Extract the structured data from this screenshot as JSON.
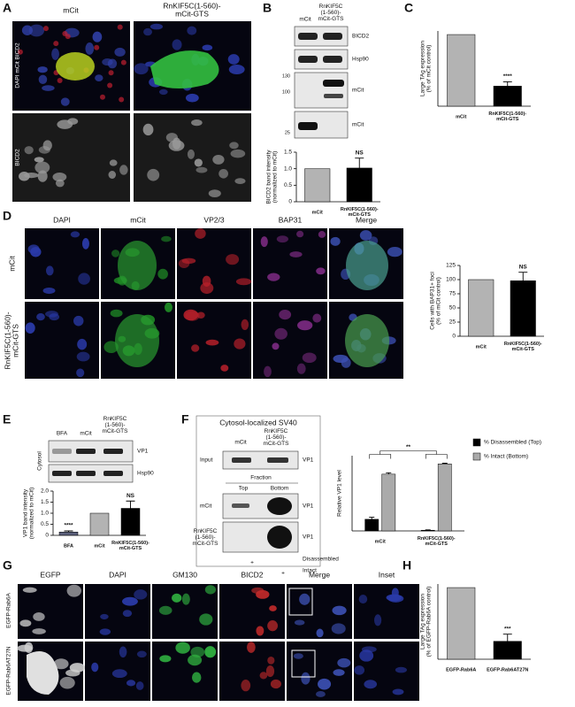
{
  "figure": {
    "A": {
      "letter": "A",
      "col_labels": [
        "mCit",
        "RnKIF5C(1-560)-\nmCit-GTS"
      ],
      "row_labels": [
        "DAPI mCit BICD2",
        "BICD2"
      ]
    },
    "B": {
      "letter": "B",
      "lane_labels": [
        "mCit",
        "RnKIF5C\n(1-560)-\nmCit-GTS"
      ],
      "blot_labels": [
        "BICD2",
        "Hsp90",
        "mCit",
        "mCit"
      ],
      "mw_markers": [
        "130",
        "100",
        "25"
      ]
    },
    "C": {
      "letter": "C"
    },
    "D": {
      "letter": "D",
      "col_labels": [
        "DAPI",
        "mCit",
        "VP2/3",
        "BAP31",
        "Merge"
      ],
      "row_labels": [
        "mCit",
        "RnKIF5C(1-560)-\nmCit-GTS"
      ]
    },
    "E": {
      "letter": "E",
      "lane_labels": [
        "BFA",
        "mCit",
        "RnKIF5C\n(1-560)-\nmCit-GTS"
      ],
      "blot_labels": [
        "VP1",
        "Hsp90"
      ],
      "side_label": "Cytosol"
    },
    "F": {
      "letter": "F",
      "header": "Cytosol-localized SV40",
      "lane_labels": [
        "mCit",
        "RnKIF5C\n(1-560)-\nmCit-GTS"
      ],
      "input_label": "Input",
      "fraction_label": "Fraction",
      "fraction_lanes": [
        "Top",
        "Bottom"
      ],
      "row_labels": [
        "mCit",
        "RnKIF5C\n(1-560)-\nmCit-GTS"
      ],
      "blot_labels": [
        "VP1",
        "VP1",
        "VP1"
      ],
      "footer": [
        "+",
        "Disassembled",
        "+",
        "Intact"
      ]
    },
    "G": {
      "letter": "G",
      "col_labels": [
        "EGFP",
        "DAPI",
        "GM130",
        "BICD2",
        "Merge",
        "Inset"
      ],
      "row_labels": [
        "EGFP-Rab6A",
        "EGFP-Rab6AT27N"
      ]
    },
    "H": {
      "letter": "H"
    }
  },
  "chart_data": [
    {
      "type": "bar",
      "categories": [
        "mCit",
        "RnKIF5C(1-560)-\nmCit-GTS"
      ],
      "values": [
        1,
        1.02
      ],
      "errors": [
        null,
        0.3
      ],
      "colors": [
        "#b3b3b3",
        "#000000"
      ],
      "ylim": [
        0,
        1.5
      ],
      "yticks": [
        0,
        0.5,
        {
          "value": 1,
          "label": "1.0"
        },
        1.5
      ],
      "ylabel": "BICD2 band intensity\n(normalized to mCit)",
      "annotations": [
        {
          "text": "NS",
          "category": "RnKIF5C(1-560)-\nmCit-GTS"
        }
      ]
    },
    {
      "type": "bar",
      "categories": [
        "mCit",
        "RnKIF5C(1-560)-\nmCit-GTS"
      ],
      "values": [
        100,
        28
      ],
      "errors": [
        null,
        6
      ],
      "colors": [
        "#b3b3b3",
        "#000000"
      ],
      "ylim": [
        0,
        105
      ],
      "ylabel": "Large TAg expression\n(% of mCit control)",
      "annotations": [
        {
          "text": "****",
          "category": "RnKIF5C(1-560)-\nmCit-GTS"
        }
      ]
    },
    {
      "type": "bar",
      "categories": [
        "mCit",
        "RnKIF5C(1-560)-\nmCit-GTS"
      ],
      "values": [
        100,
        98
      ],
      "errors": [
        null,
        15
      ],
      "colors": [
        "#b3b3b3",
        "#000000"
      ],
      "ylim": [
        0,
        125
      ],
      "yticks": [
        0,
        25,
        50,
        75,
        100,
        125
      ],
      "ylabel": "Cells with BAP31+ foci\n(% of mCit control)",
      "annotations": [
        {
          "text": "NS",
          "category": "RnKIF5C(1-560)-\nmCit-GTS"
        }
      ]
    },
    {
      "type": "bar",
      "categories": [
        "BFA",
        "mCit",
        "RnKIF5C(1-560)-\nmCit-GTS"
      ],
      "values": [
        0.15,
        1,
        1.22
      ],
      "errors": [
        0.05,
        null,
        0.33
      ],
      "colors": [
        "#5a5f7a",
        "#b3b3b3",
        "#000000"
      ],
      "ylim": [
        0,
        2
      ],
      "yticks": [
        0,
        0.5,
        {
          "value": 1,
          "label": "1.0"
        },
        1.5,
        {
          "value": 2,
          "label": "2.0"
        }
      ],
      "ylabel": "VP1 band intensity\n(normalized to mCit)",
      "annotations": [
        {
          "text": "****",
          "category": "BFA"
        },
        {
          "text": "NS",
          "category": "RnKIF5C(1-560)-\nmCit-GTS"
        }
      ]
    },
    {
      "type": "bar",
      "categories": [
        "mCit",
        "RnKIF5C(1-560)-\nmCit-GTS"
      ],
      "series": [
        {
          "name": "% Disassembled (Top)",
          "color": "#000000",
          "values": [
            17,
            1
          ],
          "errors": [
            3,
            0.5
          ]
        },
        {
          "name": "% Intact (Bottom)",
          "color": "#aaaaaa",
          "values": [
            83,
            98
          ],
          "errors": [
            2,
            1
          ]
        }
      ],
      "ylim": [
        0,
        110
      ],
      "ylabel": "Relative VP1 level",
      "annotations": [
        {
          "text": "**"
        }
      ]
    },
    {
      "type": "bar",
      "categories": [
        "EGFP-Rab6A",
        "EGFP-Rab6AT27N"
      ],
      "values": [
        100,
        25
      ],
      "errors": [
        null,
        10
      ],
      "colors": [
        "#b3b3b3",
        "#000000"
      ],
      "ylim": [
        0,
        105
      ],
      "ylabel": "Large TAg expression\n(% of EGFP-Rab6A control)",
      "annotations": [
        {
          "text": "***",
          "category": "EGFP-Rab6AT27N"
        }
      ]
    }
  ]
}
